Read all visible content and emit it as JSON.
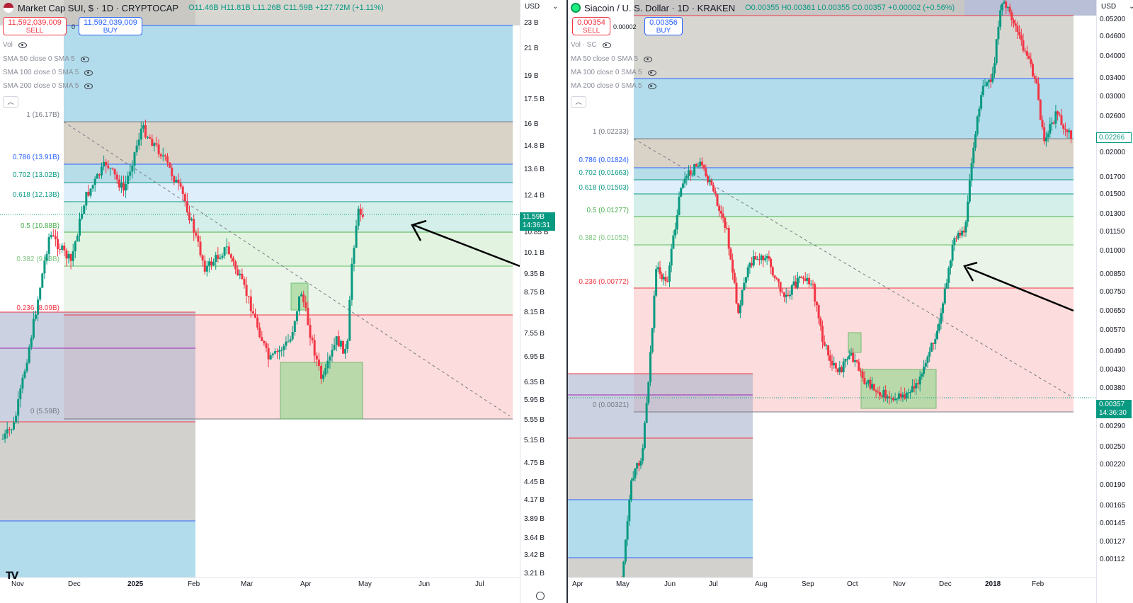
{
  "left_chart": {
    "title": "Market Cap SUI, $ · 1D · CRYPTOCAP",
    "ohlc": {
      "o": "O11.46B",
      "h": "H11.81B",
      "l": "L11.26B",
      "c": "C11.59B",
      "chg": "+127.72M (+1.11%)"
    },
    "sell_price": "11,592,039,009",
    "sell_label": "SELL",
    "spread": "0",
    "buy_price": "11,592,039,009",
    "buy_label": "BUY",
    "indicators": [
      "Vol",
      "SMA 50 close 0 SMA 5",
      "SMA 100 close 0 SMA 5",
      "SMA 200 close 0 SMA 5"
    ],
    "currency": "USD",
    "last_price": "11.59B",
    "countdown": "14:36:31",
    "price_axis": [
      "23 B",
      "21 B",
      "19 B",
      "17.5 B",
      "16 B",
      "14.8 B",
      "13.6 B",
      "12.4 B",
      "10.85 B",
      "10.1 B",
      "9.35 B",
      "8.75 B",
      "8.15 B",
      "7.55 B",
      "6.95 B",
      "6.35 B",
      "5.95 B",
      "5.55 B",
      "5.15 B",
      "4.75 B",
      "4.45 B",
      "4.17 B",
      "3.89 B",
      "3.64 B",
      "3.42 B",
      "3.21 B"
    ],
    "time_axis": [
      "Nov",
      "Dec",
      "2025",
      "Feb",
      "Mar",
      "Apr",
      "May",
      "Jun",
      "Jul"
    ],
    "fib_levels": [
      {
        "label": "1 (16.17B)",
        "color": "#787b86"
      },
      {
        "label": "0.786 (13.91B)",
        "color": "#2962ff"
      },
      {
        "label": "0.702 (13.02B)",
        "color": "#089981"
      },
      {
        "label": "0.618 (12.13B)",
        "color": "#089981"
      },
      {
        "label": "0.5 (10.88B)",
        "color": "#4caf50"
      },
      {
        "label": "0.382 (9.63B)",
        "color": "#81c784"
      },
      {
        "label": "0.236 (8.09B)",
        "color": "#f23645"
      },
      {
        "label": "0 (5.59B)",
        "color": "#787b86"
      }
    ],
    "chart_data": {
      "type": "candlestick",
      "x_range": [
        "Oct 2024",
        "Jul 2025"
      ],
      "y_unit": "USD market cap (B)",
      "key_points": [
        {
          "date": "Nov",
          "value": 5.6
        },
        {
          "date": "Dec",
          "value": 13.5
        },
        {
          "date": "Jan 2025",
          "value": 16.2
        },
        {
          "date": "Feb",
          "value": 12.5
        },
        {
          "date": "Mar",
          "value": 7.0
        },
        {
          "date": "Apr",
          "value": 6.4
        },
        {
          "date": "late Apr",
          "value": 11.6
        }
      ]
    }
  },
  "right_chart": {
    "title": "Siacoin / U. S. Dollar · 1D · KRAKEN",
    "ohlc": {
      "o": "O0.00355",
      "h": "H0.00361",
      "l": "L0.00355",
      "c": "C0.00357",
      "chg": "+0.00002 (+0.56%)"
    },
    "sell_price": "0.00354",
    "sell_label": "SELL",
    "spread": "0.00002",
    "buy_price": "0.00356",
    "buy_label": "BUY",
    "indicators": [
      "Vol · SC",
      "MA 50 close 0 SMA 5",
      "MA 100 close 0 SMA 5",
      "MA 200 close 0 SMA 5"
    ],
    "currency": "USD",
    "last_price": "0.00357",
    "countdown": "14:36:30",
    "marker_price": "0.02266",
    "price_axis": [
      "0.05200",
      "0.04600",
      "0.04000",
      "0.03400",
      "0.03000",
      "0.02600",
      "0.02000",
      "0.01700",
      "0.01500",
      "0.01300",
      "0.01150",
      "0.01000",
      "0.00850",
      "0.00750",
      "0.00650",
      "0.00570",
      "0.00490",
      "0.00430",
      "0.00380",
      "0.00290",
      "0.00250",
      "0.00220",
      "0.00190",
      "0.00165",
      "0.00145",
      "0.00127",
      "0.00112"
    ],
    "time_axis": [
      "Apr",
      "May",
      "Jun",
      "Jul",
      "Aug",
      "Sep",
      "Oct",
      "Nov",
      "Dec",
      "2018",
      "Feb"
    ],
    "fib_levels": [
      {
        "label": "1 (0.02233)",
        "color": "#787b86"
      },
      {
        "label": "0.786 (0.01824)",
        "color": "#2962ff"
      },
      {
        "label": "0.702 (0.01663)",
        "color": "#089981"
      },
      {
        "label": "0.618 (0.01503)",
        "color": "#089981"
      },
      {
        "label": "0.5 (0.01277)",
        "color": "#4caf50"
      },
      {
        "label": "0.382 (0.01052)",
        "color": "#81c784"
      },
      {
        "label": "0.236 (0.00772)",
        "color": "#f23645"
      },
      {
        "label": "0 (0.00321)",
        "color": "#787b86"
      }
    ],
    "chart_data": {
      "type": "candlestick",
      "x_range": [
        "Apr 2017",
        "Feb 2018"
      ],
      "y_unit": "USD",
      "key_points": [
        {
          "date": "May",
          "value": 0.0012
        },
        {
          "date": "Jun",
          "value": 0.018
        },
        {
          "date": "Jul",
          "value": 0.021
        },
        {
          "date": "Aug",
          "value": 0.009
        },
        {
          "date": "Oct",
          "value": 0.0045
        },
        {
          "date": "Nov",
          "value": 0.0035
        },
        {
          "date": "Dec",
          "value": 0.011
        },
        {
          "date": "Jan 2018",
          "value": 0.045
        },
        {
          "date": "Feb",
          "value": 0.022
        }
      ]
    }
  }
}
